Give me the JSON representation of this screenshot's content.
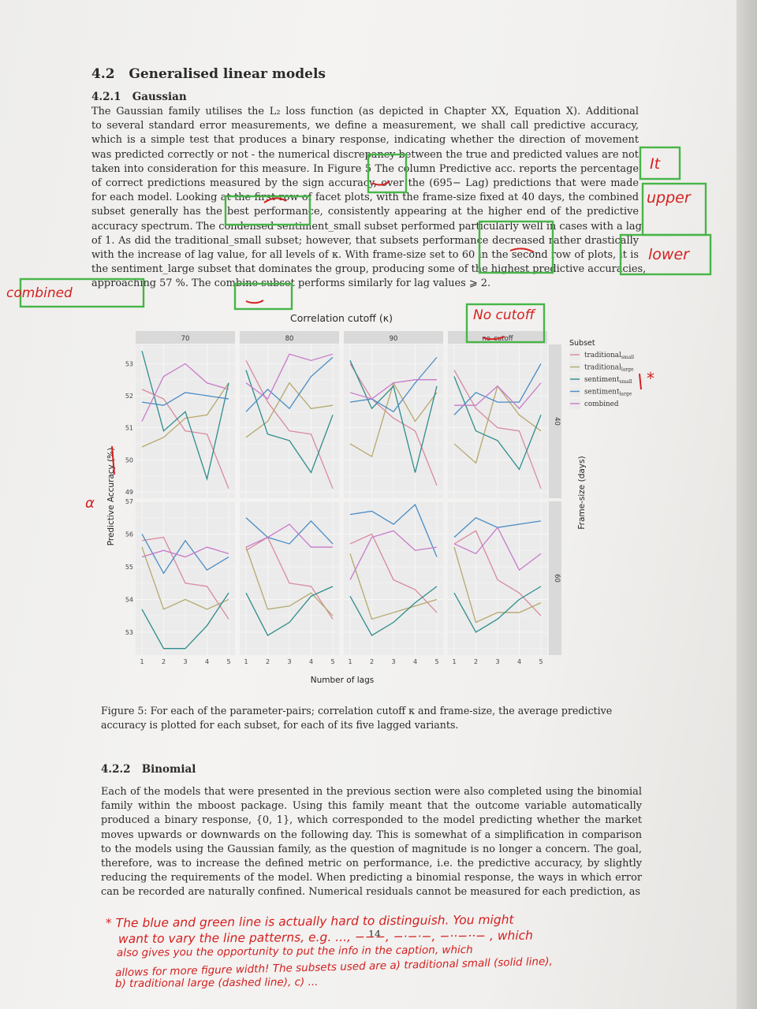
{
  "section": {
    "number": "4.2",
    "title": "Generalised linear models"
  },
  "subsection1": {
    "number": "4.2.1",
    "title": "Gaussian"
  },
  "para1": [
    "The Gaussian family utilises the L₂ loss function (as depicted in Chapter XX, Equation X). Additional",
    "to several standard error measurements, we define a measurement, we shall call predictive accuracy,",
    "which is a simple test that produces a binary response, indicating whether the direction of movement",
    "was predicted correctly or not - the numerical discrepancy between the true and predicted values are not",
    "taken into consideration for this measure. In Figure 5 The column Predictive acc. reports the percentage",
    "of correct predictions measured by the sign accuracy, over the (695− Lag) predictions that were made",
    "for each model. Looking at the first row of facet plots, with the frame-size fixed at 40 days, the combined",
    "subset generally has the best performance, consistently appearing at the higher end of the predictive",
    "accuracy spectrum. The condensed sentiment_small subset performed particularly well in cases with a lag",
    "of 1. As did the traditional_small subset; however, that subsets performance decreased rather drastically",
    "with the increase of lag value, for all levels of κ. With frame-size set to 60 in the second row of plots, it is",
    "the sentiment_large subset that dominates the group, producing some of the highest predictive accuracies,",
    "approaching 57 %. The combine subset performs similarly for lag values ⩾ 2."
  ],
  "figure": {
    "title": "Correlation cutoff (κ)",
    "col_labels": [
      "70",
      "80",
      "90",
      "no_cutoff"
    ],
    "row_labels": [
      "40",
      "60"
    ],
    "xlabel": "Number of lags",
    "ylabel": "Predictive Accuracy (%)",
    "right_label": "Frame-size (days)",
    "legend_title": "Subset",
    "caption": [
      "Figure 5: For each of the parameter-pairs; correlation cutoff κ and frame-size, the average predictive",
      "accuracy is plotted for each subset, for each of its five lagged variants."
    ]
  },
  "chart_data": {
    "type": "line",
    "x": [
      1,
      2,
      3,
      4,
      5
    ],
    "rows": [
      {
        "frame_size": "40",
        "yticks": [
          49,
          50,
          51,
          52,
          53
        ],
        "ylim": [
          48.8,
          53.6
        ]
      },
      {
        "frame_size": "60",
        "yticks": [
          53,
          54,
          55,
          56,
          57
        ],
        "ylim": [
          52.3,
          57.0
        ]
      }
    ],
    "series": [
      {
        "name": "traditional_small",
        "color": "#d98aa0"
      },
      {
        "name": "traditional_large",
        "color": "#b5a86e"
      },
      {
        "name": "sentiment_small",
        "color": "#2f8c8c"
      },
      {
        "name": "sentiment_large",
        "color": "#4a8cc4"
      },
      {
        "name": "combined",
        "color": "#c77ac9"
      }
    ],
    "facets": [
      {
        "row": 0,
        "col": 0,
        "values": [
          [
            52.2,
            51.9,
            50.9,
            50.8,
            49.1
          ],
          [
            50.4,
            50.7,
            51.3,
            51.4,
            52.4
          ],
          [
            53.4,
            50.9,
            51.5,
            49.4,
            52.4
          ],
          [
            51.8,
            51.7,
            52.1,
            52.0,
            51.9
          ],
          [
            51.2,
            52.6,
            53.0,
            52.4,
            52.2
          ]
        ]
      },
      {
        "row": 0,
        "col": 1,
        "values": [
          [
            53.1,
            51.8,
            50.9,
            50.8,
            49.1
          ],
          [
            50.7,
            51.2,
            52.4,
            51.6,
            51.7
          ],
          [
            52.8,
            50.8,
            50.6,
            49.6,
            51.4
          ],
          [
            51.5,
            52.2,
            51.6,
            52.6,
            53.2
          ],
          [
            52.4,
            51.9,
            53.3,
            53.1,
            53.3
          ]
        ]
      },
      {
        "row": 0,
        "col": 2,
        "values": [
          [
            53.0,
            51.9,
            51.3,
            50.9,
            49.2
          ],
          [
            50.5,
            50.1,
            52.4,
            51.2,
            52.1
          ],
          [
            53.1,
            51.6,
            52.3,
            49.6,
            52.3
          ],
          [
            51.8,
            51.9,
            51.5,
            52.4,
            53.2
          ],
          [
            52.1,
            51.9,
            52.4,
            52.5,
            52.5
          ]
        ]
      },
      {
        "row": 0,
        "col": 3,
        "values": [
          [
            52.8,
            51.6,
            51.0,
            50.9,
            49.1
          ],
          [
            50.5,
            49.9,
            52.3,
            51.4,
            50.9
          ],
          [
            52.6,
            50.9,
            50.6,
            49.7,
            51.4
          ],
          [
            51.4,
            52.1,
            51.8,
            51.8,
            53.0
          ],
          [
            51.7,
            51.7,
            52.3,
            51.6,
            52.4
          ]
        ]
      },
      {
        "row": 1,
        "col": 0,
        "values": [
          [
            55.8,
            55.9,
            54.5,
            54.4,
            53.4
          ],
          [
            55.6,
            53.7,
            54.0,
            53.7,
            54.0
          ],
          [
            53.7,
            52.5,
            52.5,
            53.2,
            54.2
          ],
          [
            56.0,
            54.8,
            55.8,
            54.9,
            55.3
          ],
          [
            55.3,
            55.5,
            55.3,
            55.6,
            55.4
          ]
        ]
      },
      {
        "row": 1,
        "col": 1,
        "values": [
          [
            55.5,
            55.9,
            54.5,
            54.4,
            53.4
          ],
          [
            55.6,
            53.7,
            53.8,
            54.2,
            53.5
          ],
          [
            54.2,
            52.9,
            53.3,
            54.1,
            54.4
          ],
          [
            56.5,
            55.9,
            55.7,
            56.4,
            55.7
          ],
          [
            55.6,
            55.9,
            56.3,
            55.6,
            55.6
          ]
        ]
      },
      {
        "row": 1,
        "col": 2,
        "values": [
          [
            55.7,
            56.0,
            54.6,
            54.3,
            53.6
          ],
          [
            55.4,
            53.4,
            53.6,
            53.8,
            54.0
          ],
          [
            54.1,
            52.9,
            53.3,
            53.9,
            54.4
          ],
          [
            56.6,
            56.7,
            56.3,
            56.9,
            55.3
          ],
          [
            54.6,
            55.9,
            56.1,
            55.5,
            55.6
          ]
        ]
      },
      {
        "row": 1,
        "col": 3,
        "values": [
          [
            55.7,
            56.1,
            54.6,
            54.2,
            53.5
          ],
          [
            55.6,
            53.3,
            53.6,
            53.6,
            53.9
          ],
          [
            54.2,
            53.0,
            53.4,
            54.0,
            54.4
          ],
          [
            55.9,
            56.5,
            56.2,
            56.3,
            56.4
          ],
          [
            55.7,
            55.4,
            56.2,
            54.9,
            55.4
          ]
        ]
      }
    ]
  },
  "subsection2": {
    "number": "4.2.2",
    "title": "Binomial"
  },
  "para2": [
    "Each of the models that were presented in the previous section were also completed using the binomial",
    "family within the mboost package. Using this family meant that the outcome variable automatically",
    "produced a binary response, {0, 1}, which corresponded to the model predicting whether the market",
    "moves upwards or downwards on the following day. This is somewhat of a simplification in comparison",
    "to the models using the Gaussian family, as the question of magnitude is no longer a concern. The goal,",
    "therefore, was to increase the defined metric on performance, i.e. the predictive accuracy, by slightly",
    "reducing the requirements of the model. When predicting a binomial response, the ways in which error",
    "can be recorded are naturally confined. Numerical residuals cannot be measured for each prediction, as"
  ],
  "page_number": "14",
  "annotations": {
    "margin_it": "It",
    "margin_upper": "upper",
    "margin_lower": "lower",
    "margin_combined": "combined",
    "no_cutoff": "No cutoff",
    "legend_star": "*",
    "alpha_mark": "α",
    "footnote": [
      "* The blue and green line is actually hard to distinguish. You might",
      "want to vary the line patterns, e.g. ..., −−−, −·−·−, −··−··− , which",
      "also gives you the opportunity to put the info in the caption, which",
      "allows for more figure width! The subsets used are a) traditional small (solid line),",
      "b) traditional large (dashed line), c) ..."
    ]
  }
}
